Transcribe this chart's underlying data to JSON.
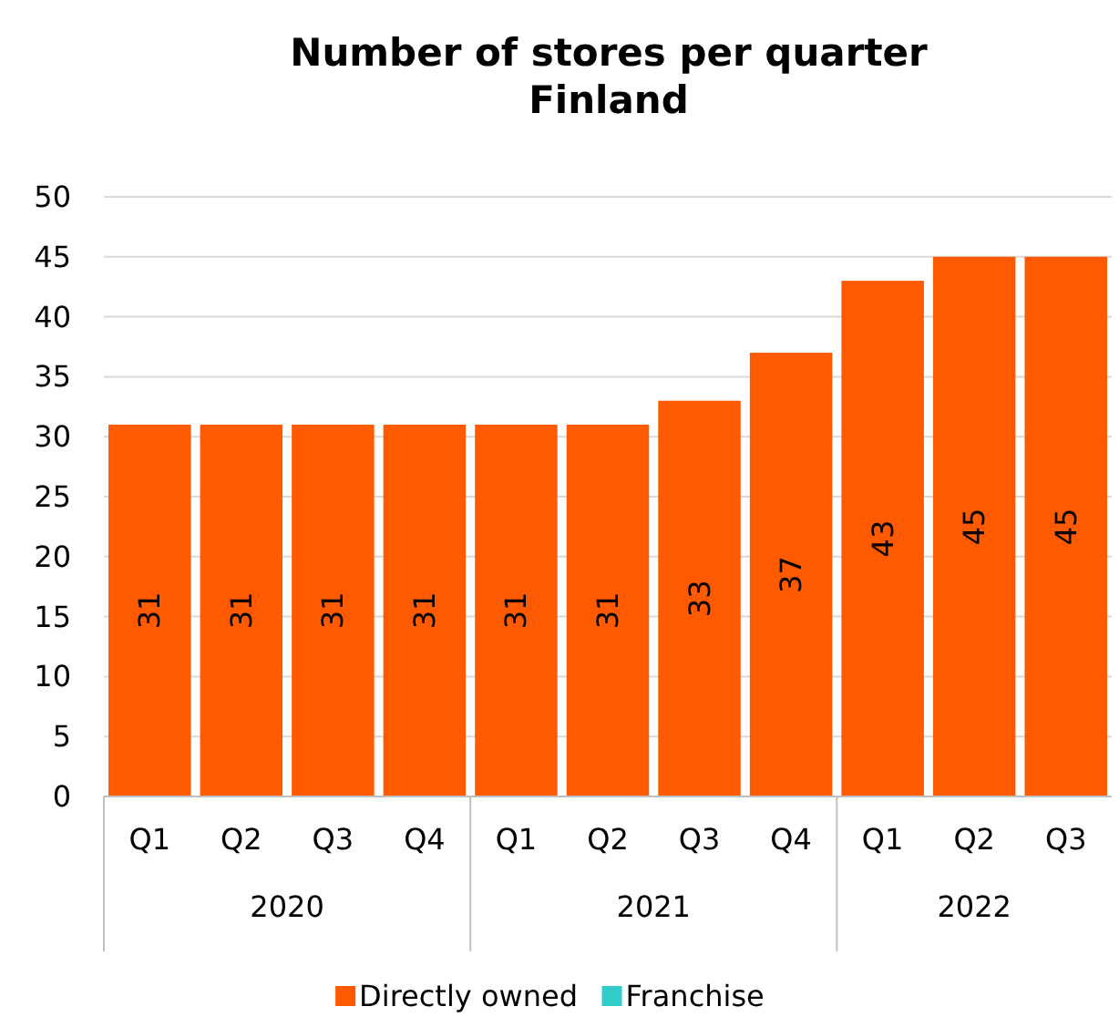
{
  "chart_data": {
    "type": "bar",
    "title": "Number of stores per quarter\nFinland",
    "categories": [
      "Q1",
      "Q2",
      "Q3",
      "Q4",
      "Q1",
      "Q2",
      "Q3",
      "Q4",
      "Q1",
      "Q2",
      "Q3"
    ],
    "series": [
      {
        "name": "Directly owned",
        "color": "#ff5a00",
        "values": [
          31,
          31,
          31,
          31,
          31,
          31,
          33,
          37,
          43,
          45,
          45
        ],
        "value_labels": [
          "31",
          "31",
          "31",
          "31",
          "31",
          "31",
          "33",
          "37",
          "43",
          "45",
          "45"
        ]
      },
      {
        "name": "Franchise",
        "color": "#33cccc",
        "values": [
          0,
          0,
          0,
          0,
          0,
          0,
          0,
          0,
          0,
          0,
          0
        ]
      }
    ],
    "annotations": [
      "2020",
      "2021",
      "2022"
    ],
    "ylim": [
      0,
      50
    ],
    "yticks": [
      0,
      5,
      10,
      15,
      20,
      25,
      30,
      35,
      40,
      45,
      50
    ],
    "grid": "y",
    "legend": "bottom"
  }
}
